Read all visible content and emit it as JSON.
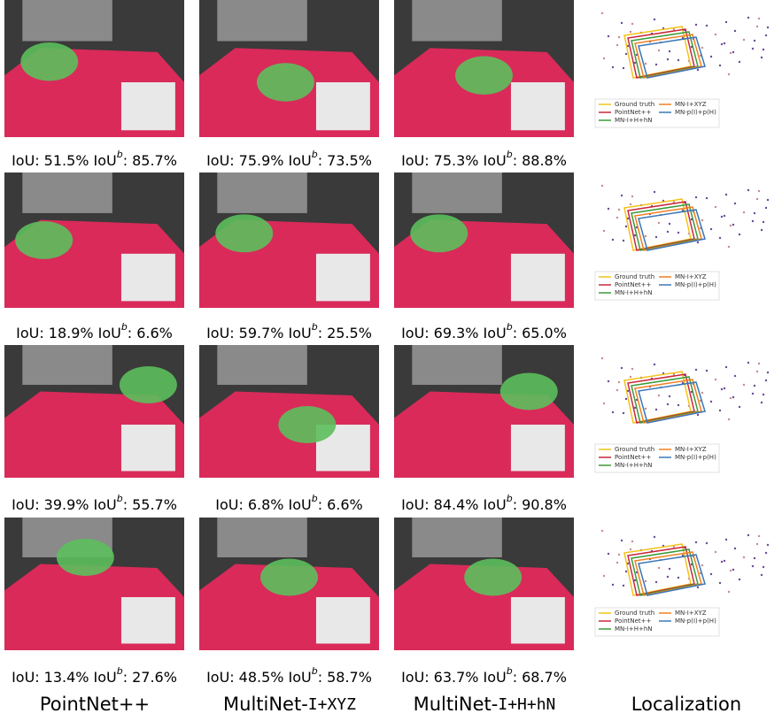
{
  "caption_parts": {
    "iou_label": "IoU:",
    "ioub_label": "IoU",
    "ioub_sup": "b",
    "colon": ":"
  },
  "rows": [
    {
      "cells": [
        {
          "iou": "51.5%",
          "ioub": "85.7%"
        },
        {
          "iou": "75.9%",
          "ioub": "73.5%"
        },
        {
          "iou": "75.3%",
          "ioub": "88.8%"
        }
      ]
    },
    {
      "cells": [
        {
          "iou": "18.9%",
          "ioub": "6.6%"
        },
        {
          "iou": "59.7%",
          "ioub": "25.5%"
        },
        {
          "iou": "69.3%",
          "ioub": "65.0%"
        }
      ]
    },
    {
      "cells": [
        {
          "iou": "39.9%",
          "ioub": "55.7%"
        },
        {
          "iou": "6.8%",
          "ioub": "6.6%"
        },
        {
          "iou": "84.4%",
          "ioub": "90.8%"
        }
      ]
    },
    {
      "cells": [
        {
          "iou": "13.4%",
          "ioub": "27.6%"
        },
        {
          "iou": "48.5%",
          "ioub": "58.7%"
        },
        {
          "iou": "63.7%",
          "ioub": "68.7%"
        }
      ]
    }
  ],
  "columns": [
    {
      "prefix": "PointNet++"
    },
    {
      "prefix": "MultiNet-",
      "mono": "I+XYZ"
    },
    {
      "prefix": "MultiNet-",
      "mono": "I+H+hN"
    },
    {
      "prefix": "Localization"
    }
  ],
  "legend": [
    {
      "name": "Ground truth",
      "color": "#f2c31a"
    },
    {
      "name": "PointNet++",
      "color": "#c8283c"
    },
    {
      "name": "MN-I+H+hN",
      "color": "#3a9a3a"
    },
    {
      "name": "MN-I+XYZ",
      "color": "#f08020"
    },
    {
      "name": "MN-p(I)+p(H)",
      "color": "#3a78b8"
    }
  ]
}
